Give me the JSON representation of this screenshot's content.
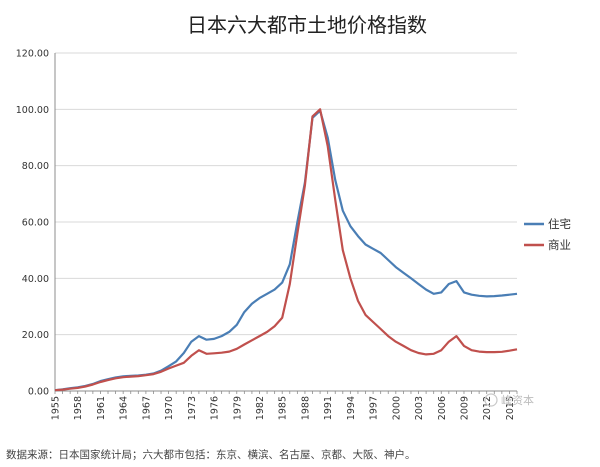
{
  "chart_data": {
    "type": "line",
    "title": "日本六大都市土地价格指数",
    "xlabel": "",
    "ylabel": "",
    "ylim": [
      0,
      120
    ],
    "yticks": [
      "0.00",
      "20.00",
      "40.00",
      "60.00",
      "80.00",
      "100.00",
      "120.00"
    ],
    "xlim": [
      1955,
      2016
    ],
    "xticks": [
      "1955",
      "1958",
      "1961",
      "1964",
      "1967",
      "1970",
      "1973",
      "1976",
      "1979",
      "1982",
      "1985",
      "1988",
      "1991",
      "1994",
      "1997",
      "2000",
      "2003",
      "2006",
      "2009",
      "2012",
      "2015"
    ],
    "grid": "horizontal",
    "legend_position": "right",
    "series": [
      {
        "name": "住宅",
        "color": "#4a7eb5",
        "x": [
          1955,
          1956,
          1957,
          1958,
          1959,
          1960,
          1961,
          1962,
          1963,
          1964,
          1965,
          1966,
          1967,
          1968,
          1969,
          1970,
          1971,
          1972,
          1973,
          1974,
          1975,
          1976,
          1977,
          1978,
          1979,
          1980,
          1981,
          1982,
          1983,
          1984,
          1985,
          1986,
          1987,
          1988,
          1989,
          1990,
          1991,
          1992,
          1993,
          1994,
          1995,
          1996,
          1997,
          1998,
          1999,
          2000,
          2001,
          2002,
          2003,
          2004,
          2005,
          2006,
          2007,
          2008,
          2009,
          2010,
          2011,
          2012,
          2013,
          2014,
          2015,
          2016
        ],
        "y": [
          0.3,
          0.6,
          1.0,
          1.3,
          1.8,
          2.5,
          3.5,
          4.2,
          4.8,
          5.2,
          5.4,
          5.5,
          5.8,
          6.2,
          7.2,
          8.8,
          10.5,
          13.5,
          17.5,
          19.5,
          18.2,
          18.5,
          19.5,
          21.0,
          23.5,
          28.0,
          31.0,
          33.0,
          34.5,
          36.0,
          38.5,
          45.0,
          60.0,
          74.0,
          97.0,
          99.5,
          90.0,
          75.0,
          64.0,
          58.5,
          55.0,
          52.0,
          50.5,
          49.0,
          46.5,
          44.0,
          42.0,
          40.0,
          38.0,
          36.0,
          34.5,
          35.0,
          38.0,
          39.0,
          35.0,
          34.2,
          33.8,
          33.6,
          33.7,
          33.9,
          34.2,
          34.5
        ]
      },
      {
        "name": "商业",
        "color": "#c0504d",
        "x": [
          1955,
          1956,
          1957,
          1958,
          1959,
          1960,
          1961,
          1962,
          1963,
          1964,
          1965,
          1966,
          1967,
          1968,
          1969,
          1970,
          1971,
          1972,
          1973,
          1974,
          1975,
          1976,
          1977,
          1978,
          1979,
          1980,
          1981,
          1982,
          1983,
          1984,
          1985,
          1986,
          1987,
          1988,
          1989,
          1990,
          1991,
          1992,
          1993,
          1994,
          1995,
          1996,
          1997,
          1998,
          1999,
          2000,
          2001,
          2002,
          2003,
          2004,
          2005,
          2006,
          2007,
          2008,
          2009,
          2010,
          2011,
          2012,
          2013,
          2014,
          2015,
          2016
        ],
        "y": [
          0.3,
          0.5,
          0.8,
          1.1,
          1.6,
          2.3,
          3.2,
          3.9,
          4.5,
          4.9,
          5.1,
          5.3,
          5.6,
          6.0,
          6.8,
          8.0,
          9.0,
          10.0,
          12.5,
          14.5,
          13.2,
          13.4,
          13.6,
          14.0,
          15.0,
          16.5,
          18.0,
          19.5,
          21.0,
          23.0,
          26.0,
          38.0,
          56.0,
          73.0,
          97.5,
          100.0,
          87.0,
          68.0,
          50.0,
          40.0,
          32.0,
          27.0,
          24.5,
          22.0,
          19.5,
          17.5,
          16.0,
          14.5,
          13.5,
          13.0,
          13.2,
          14.5,
          17.5,
          19.5,
          16.0,
          14.5,
          14.0,
          13.8,
          13.8,
          13.9,
          14.3,
          14.8
        ]
      }
    ]
  },
  "source_note": "数据来源：日本国家统计局；六大都市包括：东京、横滨、名古屋、京都、大阪、神户。",
  "watermark": "峰资本"
}
